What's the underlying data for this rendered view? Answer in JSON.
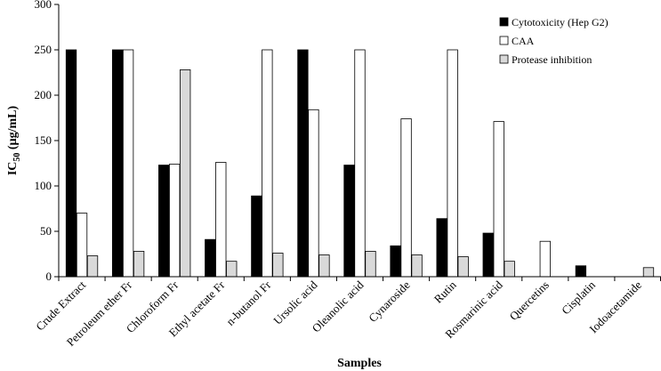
{
  "chart_data": {
    "type": "bar",
    "ylabel": "IC",
    "ylabel_subscript": "50",
    "ylabel_unit": " (µg/mL)",
    "xlabel": "Samples",
    "ylim": [
      0,
      300
    ],
    "yticks": [
      "0",
      "50",
      "100",
      "150",
      "200",
      "250",
      "300"
    ],
    "legend_position": "top-right",
    "categories": [
      "Crude Extract",
      "Petroleum ether Fr",
      "Chloroform Fr",
      "Ethyl acetate Fr",
      "n-butanol Fr",
      "Ursolic acid",
      "Oleanolic acid",
      "Cynaroside",
      "Rutin",
      "Rosmarinic acid",
      "Quercetins",
      "Cisplatin",
      "Iodoacetamide"
    ],
    "series": [
      {
        "name": "Cytotoxicity (Hep G2)",
        "color": "#000000",
        "values": [
          250,
          250,
          123,
          41,
          89,
          250,
          123,
          34,
          64,
          48,
          null,
          12,
          null
        ]
      },
      {
        "name": "CAA",
        "color": "#ffffff",
        "values": [
          70,
          250,
          124,
          126,
          250,
          184,
          250,
          174,
          250,
          171,
          39,
          null,
          null
        ]
      },
      {
        "name": "Protease inhibition",
        "color": "#d9d9d9",
        "values": [
          23,
          28,
          228,
          17,
          26,
          24,
          28,
          24,
          22,
          17,
          null,
          null,
          10
        ]
      }
    ]
  }
}
